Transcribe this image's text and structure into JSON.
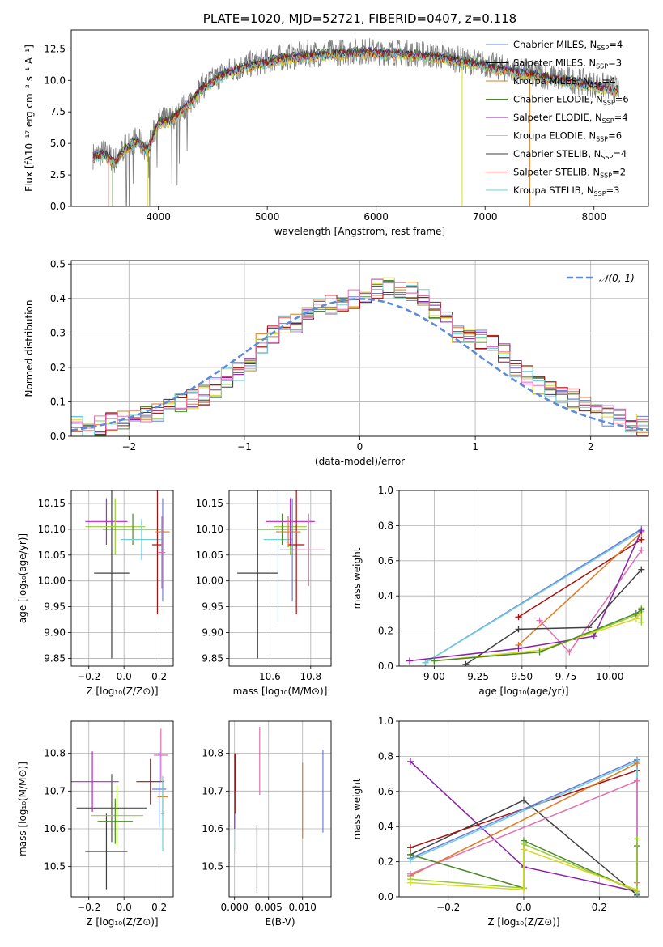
{
  "figure_title": "PLATE=1020, MJD=52721, FIBERID=0407, z=0.118",
  "colors": [
    "#6a7fd6",
    "#000000",
    "#e07b20",
    "#4c8a2c",
    "#8b21a8",
    "#d8d820",
    "#404040",
    "#a81010",
    "#70d0d8",
    "#e070b0",
    "#9acd32",
    "#505050",
    "#48c8c8",
    "#c040c0",
    "#f07050"
  ],
  "chart_data": [
    {
      "id": "spectrum",
      "type": "line",
      "title": "PLATE=1020, MJD=52721, FIBERID=0407, z=0.118",
      "xlabel": "wavelength [Angstrom, rest frame]",
      "ylabel": "Flux [fλ10⁻¹⁷ erg cm⁻² s⁻¹ A⁻¹]",
      "xlim": [
        3200,
        8500
      ],
      "ylim": [
        0,
        14
      ],
      "xticks": [
        4000,
        5000,
        6000,
        7000,
        8000
      ],
      "yticks": [
        0.0,
        2.5,
        5.0,
        7.5,
        10.0,
        12.5
      ],
      "grid": false,
      "legend": "upper-right",
      "data_curve": {
        "x": [
          3400,
          3500,
          3600,
          3700,
          3800,
          3900,
          4000,
          4100,
          4200,
          4300,
          4400,
          4500,
          4600,
          4700,
          4800,
          4900,
          5000,
          5200,
          5400,
          5600,
          5800,
          6000,
          6200,
          6400,
          6600,
          6800,
          7000,
          7200,
          7400,
          7600,
          7800,
          8000,
          8200
        ],
        "y": [
          4.0,
          4.3,
          3.6,
          4.8,
          5.3,
          4.5,
          6.8,
          6.9,
          7.6,
          8.4,
          9.5,
          10.0,
          10.6,
          10.9,
          11.2,
          11.4,
          11.6,
          11.9,
          12.1,
          12.2,
          12.3,
          12.3,
          12.2,
          12.1,
          11.9,
          11.6,
          11.3,
          10.9,
          10.6,
          10.3,
          10.0,
          9.7,
          9.3
        ]
      },
      "series": [
        {
          "name": "Chabrier MILES, N_SSP=4",
          "label_text": "Chabrier MILES, N",
          "sub": "SSP",
          "suffix": "=4",
          "color": "#6a7fd6"
        },
        {
          "name": "Salpeter MILES, N_SSP=3",
          "label_text": "Salpeter MILES, N",
          "sub": "SSP",
          "suffix": "=3",
          "color": "#000000"
        },
        {
          "name": "Kroupa MILES, N_SSP=4",
          "label_text": "Kroupa MILES, N",
          "sub": "SSP",
          "suffix": "=4",
          "color": "#e07b20"
        },
        {
          "name": "Chabrier ELODIE, N_SSP=6",
          "label_text": "Chabrier ELODIE, N",
          "sub": "SSP",
          "suffix": "=6",
          "color": "#4c8a2c"
        },
        {
          "name": "Salpeter ELODIE, N_SSP=4",
          "label_text": "Salpeter ELODIE, N",
          "sub": "SSP",
          "suffix": "=4",
          "color": "#8b21a8"
        },
        {
          "name": "Kroupa ELODIE, N_SSP=6",
          "label_text": "Kroupa ELODIE, N",
          "sub": "SSP",
          "suffix": "=6",
          "color": "#d8d820"
        },
        {
          "name": "Chabrier STELIB, N_SSP=4",
          "label_text": "Chabrier STELIB, N",
          "sub": "SSP",
          "suffix": "=4",
          "color": "#404040"
        },
        {
          "name": "Salpeter STELIB, N_SSP=2",
          "label_text": "Salpeter STELIB, N",
          "sub": "SSP",
          "suffix": "=2",
          "color": "#a81010"
        },
        {
          "name": "Kroupa STELIB, N_SSP=3",
          "label_text": "Kroupa STELIB, N",
          "sub": "SSP",
          "suffix": "=3",
          "color": "#70d0d8"
        }
      ]
    },
    {
      "id": "residuals",
      "type": "line",
      "xlabel": "(data-model)/error",
      "ylabel": "Normed distribution",
      "xlim": [
        -2.5,
        2.5
      ],
      "ylim": [
        0,
        0.51
      ],
      "xticks": [
        -2,
        -1,
        0,
        1,
        2
      ],
      "yticks": [
        0.0,
        0.1,
        0.2,
        0.3,
        0.4,
        0.5
      ],
      "grid": true,
      "legend": "upper-right",
      "legend_label": "𝒩(0, 1)",
      "gaussian": {
        "mean": 0,
        "sigma": 1,
        "color": "#5b8bd6"
      },
      "hist_bins": {
        "x": [
          -2.5,
          -2.4,
          -2.3,
          -2.2,
          -2.1,
          -2.0,
          -1.9,
          -1.8,
          -1.7,
          -1.6,
          -1.5,
          -1.4,
          -1.3,
          -1.2,
          -1.1,
          -1.0,
          -0.9,
          -0.8,
          -0.7,
          -0.6,
          -0.5,
          -0.4,
          -0.3,
          -0.2,
          -0.1,
          0.0,
          0.1,
          0.2,
          0.3,
          0.4,
          0.5,
          0.6,
          0.7,
          0.8,
          0.9,
          1.0,
          1.1,
          1.2,
          1.3,
          1.4,
          1.5,
          1.6,
          1.7,
          1.8,
          1.9,
          2.0,
          2.1,
          2.2,
          2.3,
          2.4
        ],
        "y": [
          0.03,
          0.02,
          0.03,
          0.04,
          0.05,
          0.05,
          0.06,
          0.07,
          0.09,
          0.1,
          0.11,
          0.12,
          0.14,
          0.17,
          0.19,
          0.22,
          0.27,
          0.3,
          0.32,
          0.33,
          0.35,
          0.37,
          0.38,
          0.39,
          0.4,
          0.41,
          0.43,
          0.44,
          0.43,
          0.42,
          0.4,
          0.36,
          0.34,
          0.3,
          0.29,
          0.28,
          0.27,
          0.24,
          0.2,
          0.18,
          0.15,
          0.14,
          0.12,
          0.11,
          0.09,
          0.08,
          0.06,
          0.05,
          0.04,
          0.03
        ]
      }
    },
    {
      "id": "age-Z",
      "type": "scatter",
      "xlabel": "Z [log₁₀(Z/Z⊙)]",
      "ylabel": "age  [log₁₀(age/yr)]",
      "xlim": [
        -0.3,
        0.28
      ],
      "ylim": [
        9.835,
        10.175
      ],
      "xticks": [
        -0.2,
        0.0,
        0.2
      ],
      "xtick_labels": [
        "−0.2",
        "0.0",
        "0.2"
      ],
      "yticks": [
        9.85,
        9.9,
        9.95,
        10.0,
        10.05,
        10.1,
        10.15
      ],
      "ytick_labels": [
        "9.85",
        "9.90",
        "9.95",
        "10.00",
        "10.05",
        "10.10",
        "10.15"
      ],
      "grid": true,
      "points": [
        {
          "x": -0.07,
          "y": 10.015,
          "xerr": 0.1,
          "yerr": 0.165,
          "color": "#404040"
        },
        {
          "x": -0.1,
          "y": 10.115,
          "xerr": 0.12,
          "yerr": 0.045,
          "color": "#c020d0"
        },
        {
          "x": -0.05,
          "y": 10.105,
          "xerr": 0.17,
          "yerr": 0.055,
          "color": "#9acd32"
        },
        {
          "x": 0.05,
          "y": 10.1,
          "xerr": 0.17,
          "yerr": 0.03,
          "color": "#4c8a2c"
        },
        {
          "x": 0.1,
          "y": 10.08,
          "xerr": 0.12,
          "yerr": 0.04,
          "color": "#70d0d8"
        },
        {
          "x": 0.19,
          "y": 10.07,
          "xerr": 0.03,
          "yerr": 0.135,
          "color": "#a81010"
        },
        {
          "x": 0.22,
          "y": 10.095,
          "xerr": 0.04,
          "yerr": 0.03,
          "color": "#e07b20"
        },
        {
          "x": 0.22,
          "y": 10.06,
          "xerr": 0.015,
          "yerr": 0.1,
          "color": "#6a7fd6"
        },
        {
          "x": 0.215,
          "y": 10.055,
          "xerr": 0.02,
          "yerr": 0.07,
          "color": "#e070b0"
        }
      ]
    },
    {
      "id": "age-mass",
      "type": "scatter",
      "xlabel": "mass [log₁₀(M/M⊙)]",
      "xlim": [
        10.4,
        10.9
      ],
      "ylim": [
        9.835,
        10.175
      ],
      "xticks": [
        10.6,
        10.8
      ],
      "xtick_labels": [
        "10.6",
        "10.8"
      ],
      "yticks": [
        9.85,
        9.9,
        9.95,
        10.0,
        10.05,
        10.1,
        10.15
      ],
      "ytick_labels": [
        "9.85",
        "9.90",
        "9.95",
        "10.00",
        "10.05",
        "10.10",
        "10.15"
      ],
      "grid": true,
      "points": [
        {
          "x": 10.54,
          "y": 10.015,
          "xerr": 0.1,
          "yerr": 0.165,
          "color": "#404040"
        },
        {
          "x": 10.64,
          "y": 10.08,
          "xerr": 0.07,
          "yerr": 0.16,
          "color": "#70d0d8"
        },
        {
          "x": 10.7,
          "y": 10.105,
          "xerr": 0.08,
          "yerr": 0.055,
          "color": "#9acd32"
        },
        {
          "x": 10.66,
          "y": 10.1,
          "xerr": 0.12,
          "yerr": 0.03,
          "color": "#4c8a2c"
        },
        {
          "x": 10.7,
          "y": 10.115,
          "xerr": 0.12,
          "yerr": 0.045,
          "color": "#c020d0"
        },
        {
          "x": 10.73,
          "y": 10.07,
          "xerr": 0.04,
          "yerr": 0.135,
          "color": "#a81010"
        },
        {
          "x": 10.69,
          "y": 10.095,
          "xerr": 0.06,
          "yerr": 0.03,
          "color": "#e07b20"
        },
        {
          "x": 10.71,
          "y": 10.06,
          "xerr": 0.06,
          "yerr": 0.1,
          "color": "#6a7fd6"
        },
        {
          "x": 10.79,
          "y": 10.06,
          "xerr": 0.08,
          "yerr": 0.07,
          "color": "#e070b0"
        }
      ]
    },
    {
      "id": "massweight-age",
      "type": "line",
      "xlabel": "age  [log₁₀(age/yr)]",
      "ylabel": "mass weight",
      "xlim": [
        8.8,
        10.22
      ],
      "ylim": [
        0,
        1
      ],
      "xticks": [
        9.0,
        9.25,
        9.5,
        9.75,
        10.0
      ],
      "xtick_labels": [
        "9.00",
        "9.25",
        "9.50",
        "9.75",
        "10.00"
      ],
      "yticks": [
        0.0,
        0.2,
        0.4,
        0.6,
        0.8,
        1.0
      ],
      "ytick_labels": [
        "0.0",
        "0.2",
        "0.4",
        "0.6",
        "0.8",
        "1.0"
      ],
      "grid": true,
      "series": [
        {
          "color": "#a81010",
          "x": [
            9.48,
            10.18
          ],
          "y": [
            0.28,
            0.72
          ]
        },
        {
          "color": "#6a7fd6",
          "x": [
            8.95,
            10.18
          ],
          "y": [
            0.02,
            0.78
          ]
        },
        {
          "color": "#70d0d8",
          "x": [
            8.95,
            10.18
          ],
          "y": [
            0.02,
            0.77
          ]
        },
        {
          "color": "#e07b20",
          "x": [
            9.48,
            10.18
          ],
          "y": [
            0.12,
            0.76
          ]
        },
        {
          "color": "#e070b0",
          "x": [
            9.6,
            9.77,
            10.18
          ],
          "y": [
            0.26,
            0.08,
            0.66
          ]
        },
        {
          "color": "#8b21a8",
          "x": [
            8.86,
            9.48,
            9.91,
            10.18
          ],
          "y": [
            0.03,
            0.1,
            0.17,
            0.77
          ]
        },
        {
          "color": "#404040",
          "x": [
            9.18,
            9.48,
            9.88,
            10.18
          ],
          "y": [
            0.01,
            0.21,
            0.22,
            0.55
          ]
        },
        {
          "color": "#9acd32",
          "x": [
            9.0,
            9.6,
            10.15,
            10.18,
            10.18
          ],
          "y": [
            0.03,
            0.08,
            0.29,
            0.33,
            0.25
          ]
        },
        {
          "color": "#d8d820",
          "x": [
            9.0,
            9.6,
            10.15,
            10.18
          ],
          "y": [
            0.03,
            0.09,
            0.27,
            0.31
          ]
        },
        {
          "color": "#4c8a2c",
          "x": [
            9.0,
            9.6,
            10.15,
            10.18
          ],
          "y": [
            0.03,
            0.08,
            0.3,
            0.32
          ]
        }
      ]
    },
    {
      "id": "mass-Z",
      "type": "scatter",
      "xlabel": "Z [log₁₀(Z/Z⊙)]",
      "ylabel": "mass [log₁₀(M/M⊙)]",
      "xlim": [
        -0.3,
        0.28
      ],
      "ylim": [
        10.42,
        10.885
      ],
      "xticks": [
        -0.2,
        0.0,
        0.2
      ],
      "xtick_labels": [
        "−0.2",
        "0.0",
        "0.2"
      ],
      "yticks": [
        10.5,
        10.6,
        10.7,
        10.8
      ],
      "ytick_labels": [
        "10.5",
        "10.6",
        "10.7",
        "10.8"
      ],
      "grid": true,
      "points": [
        {
          "x": -0.1,
          "y": 10.54,
          "xerr": 0.12,
          "yerr": 0.1,
          "color": "#404040"
        },
        {
          "x": -0.07,
          "y": 10.655,
          "xerr": 0.2,
          "yerr": 0.09,
          "color": "#505050"
        },
        {
          "x": -0.18,
          "y": 10.725,
          "xerr": 0.15,
          "yerr": 0.08,
          "color": "#c020d0"
        },
        {
          "x": -0.04,
          "y": 10.635,
          "xerr": 0.15,
          "yerr": 0.08,
          "color": "#9acd32"
        },
        {
          "x": -0.05,
          "y": 10.62,
          "xerr": 0.1,
          "yerr": 0.06,
          "color": "#4c8a2c"
        },
        {
          "x": 0.15,
          "y": 10.725,
          "xerr": 0.08,
          "yerr": 0.06,
          "color": "#a81010"
        },
        {
          "x": 0.2,
          "y": 10.705,
          "xerr": 0.04,
          "yerr": 0.1,
          "color": "#6a7fd6"
        },
        {
          "x": 0.22,
          "y": 10.685,
          "xerr": 0.03,
          "yerr": 0.05,
          "color": "#e07b20"
        },
        {
          "x": 0.22,
          "y": 10.64,
          "xerr": 0.01,
          "yerr": 0.1,
          "color": "#70d0d8"
        },
        {
          "x": 0.21,
          "y": 10.795,
          "xerr": 0.04,
          "yerr": 0.07,
          "color": "#e070b0"
        }
      ]
    },
    {
      "id": "mass-EBV",
      "type": "scatter",
      "xlabel": "E(B-V)",
      "xlim": [
        -0.0008,
        0.0142
      ],
      "ylim": [
        10.42,
        10.885
      ],
      "xticks": [
        0.0,
        0.005,
        0.01
      ],
      "xtick_labels": [
        "0.000",
        "0.005",
        "0.010"
      ],
      "yticks": [
        10.5,
        10.6,
        10.7,
        10.8
      ],
      "ytick_labels": [
        "10.5",
        "10.6",
        "10.7",
        "10.8"
      ],
      "grid": true,
      "points": [
        {
          "x": 0.0,
          "y": 10.7,
          "xerr": 0,
          "yerr": 0.1,
          "color": "#c020d0"
        },
        {
          "x": 0.0001,
          "y": 10.72,
          "xerr": 0,
          "yerr": 0.08,
          "color": "#a81010"
        },
        {
          "x": 0.0002,
          "y": 10.62,
          "xerr": 0,
          "yerr": 0.08,
          "color": "#70d0d8"
        },
        {
          "x": 0.0033,
          "y": 10.52,
          "xerr": 0,
          "yerr": 0.09,
          "color": "#404040"
        },
        {
          "x": 0.0037,
          "y": 10.78,
          "xerr": 0,
          "yerr": 0.09,
          "color": "#e070b0"
        },
        {
          "x": 0.01,
          "y": 10.675,
          "xerr": 0,
          "yerr": 0.1,
          "color": "#e07b20"
        },
        {
          "x": 0.013,
          "y": 10.7,
          "xerr": 0,
          "yerr": 0.11,
          "color": "#6a7fd6"
        }
      ]
    },
    {
      "id": "massweight-Z",
      "type": "line",
      "xlabel": "Z [log₁₀(Z/Z⊙)]",
      "ylabel": "mass weight",
      "xlim": [
        -0.33,
        0.33
      ],
      "ylim": [
        0,
        1
      ],
      "xticks": [
        -0.2,
        0.0,
        0.2
      ],
      "xtick_labels": [
        "−0.2",
        "0.0",
        "0.2"
      ],
      "yticks": [
        0.0,
        0.2,
        0.4,
        0.6,
        0.8,
        1.0
      ],
      "ytick_labels": [
        "0.0",
        "0.2",
        "0.4",
        "0.6",
        "0.8",
        "1.0"
      ],
      "grid": true,
      "series": [
        {
          "color": "#8b21a8",
          "x": [
            -0.3,
            0.0,
            0.3
          ],
          "y": [
            0.77,
            0.17,
            0.03
          ]
        },
        {
          "color": "#404040",
          "x": [
            -0.3,
            0.0,
            0.3,
            0.3
          ],
          "y": [
            0.24,
            0.55,
            0.01,
            0.02
          ]
        },
        {
          "color": "#a81010",
          "x": [
            -0.3,
            0.3
          ],
          "y": [
            0.28,
            0.72
          ]
        },
        {
          "color": "#6a7fd6",
          "x": [
            -0.3,
            0.3,
            0.3
          ],
          "y": [
            0.22,
            0.78,
            0.02
          ]
        },
        {
          "color": "#70d0d8",
          "x": [
            -0.3,
            0.3,
            0.3
          ],
          "y": [
            0.21,
            0.77,
            0.02
          ]
        },
        {
          "color": "#e07b20",
          "x": [
            -0.3,
            0.3
          ],
          "y": [
            0.12,
            0.76
          ]
        },
        {
          "color": "#e070b0",
          "x": [
            -0.3,
            0.3,
            0.3
          ],
          "y": [
            0.13,
            0.66,
            0.08
          ]
        },
        {
          "color": "#4c8a2c",
          "x": [
            -0.3,
            0.0,
            0.0,
            0.3,
            0.3
          ],
          "y": [
            0.24,
            0.05,
            0.32,
            0.03,
            0.29
          ]
        },
        {
          "color": "#9acd32",
          "x": [
            -0.3,
            0.0,
            0.0,
            0.3,
            0.3
          ],
          "y": [
            0.1,
            0.05,
            0.3,
            0.03,
            0.33
          ]
        },
        {
          "color": "#d8d820",
          "x": [
            -0.3,
            0.0,
            0.0,
            0.3
          ],
          "y": [
            0.08,
            0.04,
            0.27,
            0.04
          ]
        }
      ]
    }
  ]
}
